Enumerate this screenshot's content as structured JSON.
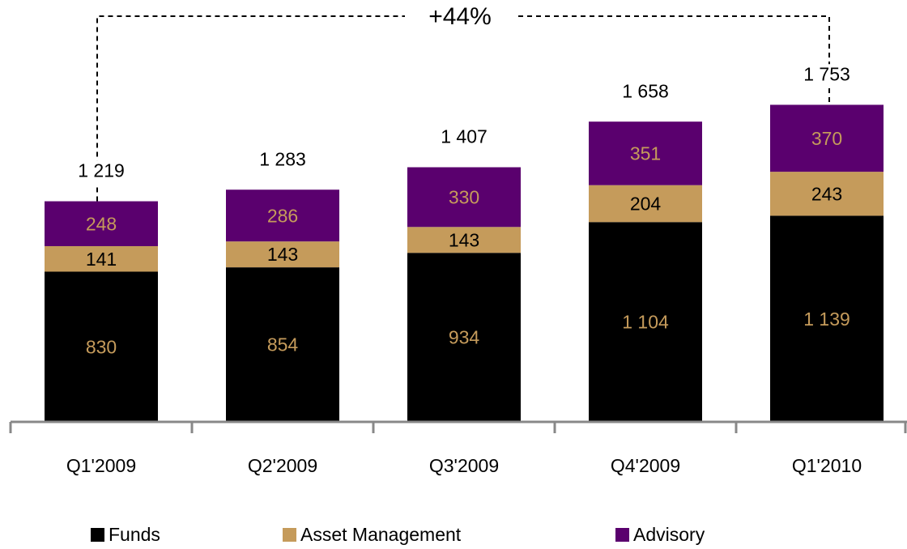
{
  "chart_data": {
    "type": "stacked_bar",
    "annotation": "+44%",
    "categories": [
      "Q1'2009",
      "Q2'2009",
      "Q3'2009",
      "Q4'2009",
      "Q1'2010"
    ],
    "series": [
      {
        "name": "Funds",
        "color": "#000000",
        "label_color": "#c59b5b",
        "values": [
          830,
          854,
          934,
          1104,
          1139
        ],
        "value_labels": [
          "830",
          "854",
          "934",
          "1 104",
          "1 139"
        ]
      },
      {
        "name": "Asset Management",
        "color": "#c59b5b",
        "label_color": "#000000",
        "values": [
          141,
          143,
          143,
          204,
          243
        ],
        "value_labels": [
          "141",
          "143",
          "143",
          "204",
          "243"
        ]
      },
      {
        "name": "Advisory",
        "color": "#5a006e",
        "label_color": "#c59b5b",
        "values": [
          248,
          286,
          330,
          351,
          370
        ],
        "value_labels": [
          "248",
          "286",
          "330",
          "351",
          "370"
        ]
      }
    ],
    "totals": {
      "values": [
        1219,
        1283,
        1407,
        1658,
        1753
      ],
      "value_labels": [
        "1 219",
        "1 283",
        "1 407",
        "1 658",
        "1 753"
      ]
    },
    "ylim": [
      0,
      2000
    ]
  }
}
